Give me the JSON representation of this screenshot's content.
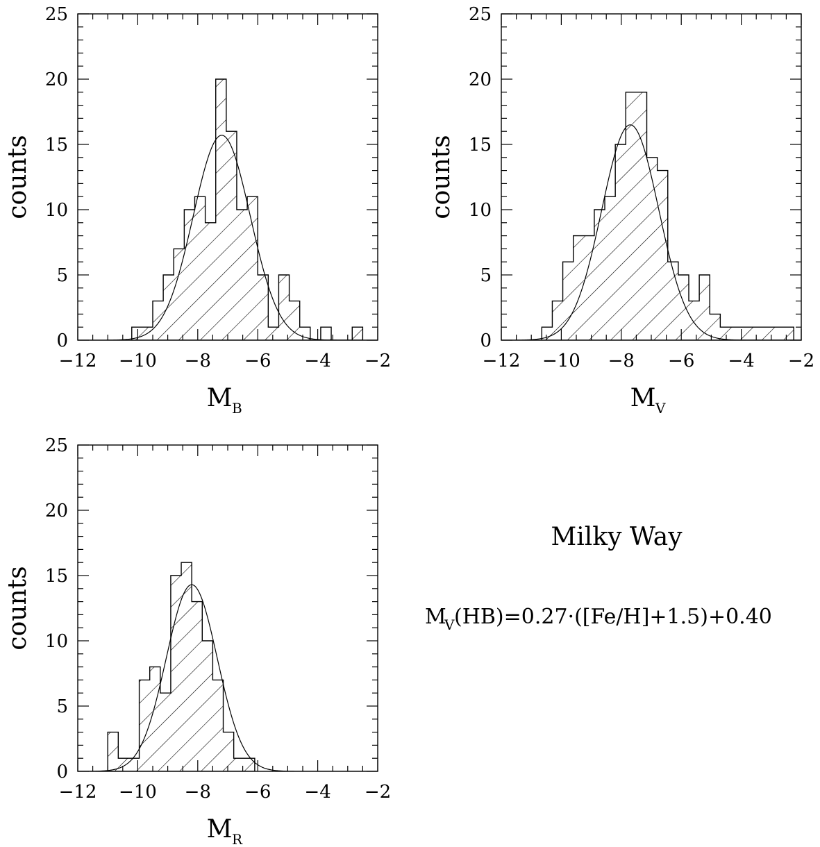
{
  "chart_data": [
    {
      "type": "bar",
      "panel": "MB",
      "xlabel_main": "M",
      "xlabel_sub": "B",
      "ylabel": "counts",
      "xlim": [
        -12,
        -2
      ],
      "ylim": [
        0,
        25
      ],
      "xticks": [
        "−12",
        "−10",
        "−8",
        "−6",
        "−4",
        "−2"
      ],
      "yticks": [
        "0",
        "5",
        "10",
        "15",
        "20",
        "25"
      ],
      "bin_width": 0.35,
      "bin_start": -10.2,
      "values": [
        1,
        1,
        3,
        5,
        7,
        10,
        11,
        9,
        20,
        16,
        10,
        11,
        5,
        1,
        5,
        3,
        1,
        0,
        1,
        0,
        0,
        1
      ],
      "gauss": {
        "mean": -7.2,
        "sigma": 0.95,
        "amp": 15.7
      }
    },
    {
      "type": "bar",
      "panel": "MV",
      "xlabel_main": "M",
      "xlabel_sub": "V",
      "ylabel": "counts",
      "xlim": [
        -12,
        -2
      ],
      "ylim": [
        0,
        25
      ],
      "xticks": [
        "−12",
        "−10",
        "−8",
        "−6",
        "−4",
        "−2"
      ],
      "yticks": [
        "0",
        "5",
        "10",
        "15",
        "20",
        "25"
      ],
      "bin_width": 0.35,
      "bin_start": -10.65,
      "values": [
        1,
        3,
        6,
        8,
        8,
        10,
        11,
        15,
        19,
        19,
        14,
        13,
        6,
        5,
        3,
        5,
        2,
        1,
        1,
        1,
        1,
        1,
        1,
        1,
        0,
        2
      ],
      "gauss": {
        "mean": -7.7,
        "sigma": 0.95,
        "amp": 16.5
      }
    },
    {
      "type": "bar",
      "panel": "MR",
      "xlabel_main": "M",
      "xlabel_sub": "R",
      "ylabel": "counts",
      "xlim": [
        -12,
        -2
      ],
      "ylim": [
        0,
        25
      ],
      "xticks": [
        "−12",
        "−10",
        "−8",
        "−6",
        "−4",
        "−2"
      ],
      "yticks": [
        "0",
        "5",
        "10",
        "15",
        "20",
        "25"
      ],
      "bin_width": 0.35,
      "bin_start": -11.0,
      "values": [
        3,
        1,
        1,
        7,
        8,
        6,
        15,
        16,
        13,
        10,
        7,
        3,
        1,
        1
      ],
      "gauss": {
        "mean": -8.2,
        "sigma": 0.85,
        "amp": 14.3
      }
    }
  ],
  "annotation": {
    "title": "Milky Way",
    "formula_prefix": "M",
    "formula_sub": "V",
    "formula_rest": "(HB)=0.27·([Fe/H]+1.5)+0.40"
  }
}
